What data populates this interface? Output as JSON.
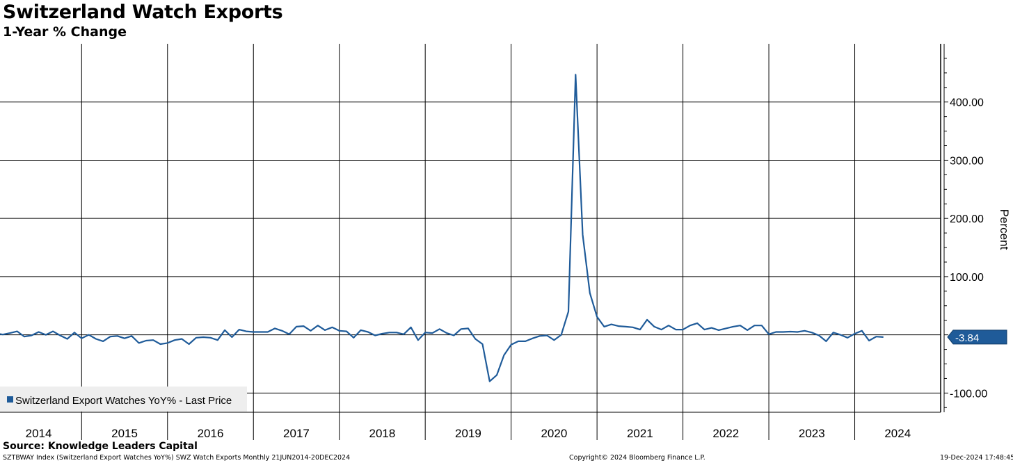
{
  "header": {
    "title": "Switzerland Watch Exports",
    "subtitle": "1-Year % Change"
  },
  "footer": {
    "source": "Source:  Knowledge Leaders Capital",
    "index_info": "SZTBWAY Index (Switzerland Export Watches YoY%) SWZ Watch Exports  Monthly 21JUN2014-20DEC2024",
    "copyright": "Copyright© 2024 Bloomberg Finance L.P.",
    "timestamp": "19-Dec-2024 17:48:45"
  },
  "colors": {
    "line": "#1f5b99",
    "grid": "#000000",
    "legend_bg": "#eeeeee"
  },
  "chart_data": {
    "type": "line",
    "title": "Switzerland Watch Exports",
    "subtitle": "1-Year % Change",
    "ylabel": "Percent",
    "ylim": [
      -133,
      500
    ],
    "yticks": [
      400,
      300,
      200,
      100,
      0,
      -100
    ],
    "ytick_labels": [
      "400.00",
      "300.00",
      "200.00",
      "100.00",
      "",
      "-100.00"
    ],
    "xlim": [
      2013.55,
      2024.5
    ],
    "x_ticks": [
      "2014",
      "2015",
      "2016",
      "2017",
      "2018",
      "2019",
      "2020",
      "2021",
      "2022",
      "2023",
      "2024"
    ],
    "last_value_label": "-3.84",
    "legend": {
      "placement": "bottom-left",
      "entries": [
        "Switzerland Export Watches YoY% - Last Price"
      ]
    },
    "grid": true,
    "series": [
      {
        "name": "Switzerland Export Watches YoY% - Last Price",
        "x_start": "2013-06",
        "frequency": "monthly",
        "values": [
          2.5,
          2.5,
          0.5,
          3,
          6,
          -3,
          -1,
          5,
          0,
          6,
          -1,
          -7,
          4,
          -6,
          0,
          -7,
          -11,
          -3,
          -2,
          -6,
          -2,
          -14,
          -10,
          -9,
          -16,
          -14,
          -9,
          -7,
          -16,
          -5,
          -4,
          -5,
          -9,
          8,
          -4,
          9,
          6,
          5,
          5,
          5,
          11,
          7,
          1,
          14,
          15,
          7,
          16,
          8,
          13,
          7,
          6,
          -5,
          8,
          5,
          -1,
          2,
          4,
          4,
          1,
          13,
          -9,
          4,
          3,
          10,
          3,
          -1,
          10,
          11,
          -7,
          -16,
          -80,
          -69,
          -35,
          -17,
          -11,
          -11,
          -6,
          -2,
          -1,
          -9,
          0,
          40,
          447,
          172,
          72,
          31,
          14,
          18,
          15,
          14,
          13,
          9,
          26,
          14,
          9,
          16,
          9,
          9,
          16,
          20,
          9,
          12,
          8,
          11,
          14,
          16,
          8,
          16,
          16,
          1,
          5,
          5,
          5.5,
          5,
          7,
          4,
          -1,
          -11,
          4,
          0,
          -5,
          2,
          7,
          -10,
          -3,
          -3.84
        ]
      }
    ]
  }
}
